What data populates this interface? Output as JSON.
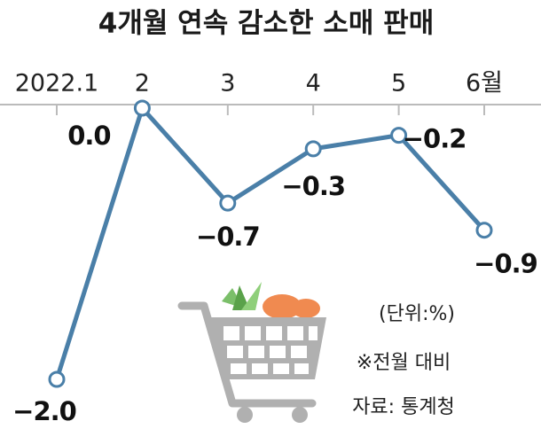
{
  "chart_data": {
    "type": "line",
    "title": "4개월 연속 감소한 소매 판매",
    "categories": [
      "2022.1",
      "2",
      "3",
      "4",
      "5",
      "6월"
    ],
    "values": [
      -2.0,
      0.0,
      -0.7,
      -0.3,
      -0.2,
      -0.9
    ],
    "value_labels": [
      "−2.0",
      "0.0",
      "−0.7",
      "−0.3",
      "−0.2",
      "−0.9"
    ],
    "color": "#4a7fa8",
    "annotations": [
      "(단위:%)",
      "※전월 대비",
      "자료: 통계청"
    ]
  }
}
